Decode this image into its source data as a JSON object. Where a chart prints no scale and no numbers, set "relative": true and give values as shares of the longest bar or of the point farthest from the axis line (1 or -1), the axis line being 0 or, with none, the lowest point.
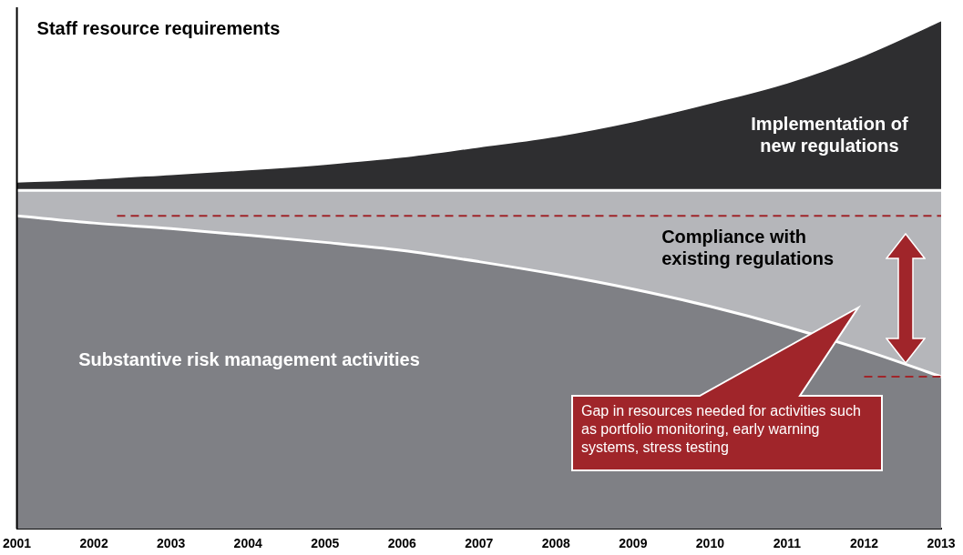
{
  "chart_data": {
    "type": "area",
    "title": "Staff resource requirements",
    "relative": true,
    "stacked": true,
    "categories": [
      "2001",
      "2002",
      "2003",
      "2004",
      "2005",
      "2006",
      "2007",
      "2008",
      "2009",
      "2010",
      "2011",
      "2012",
      "2013"
    ],
    "series": [
      {
        "name": "Substantive risk management activities",
        "color": "#7f8085",
        "values": [
          0.615,
          0.601,
          0.59,
          0.577,
          0.563,
          0.547,
          0.525,
          0.5,
          0.471,
          0.437,
          0.397,
          0.351,
          0.299
        ]
      },
      {
        "name": "Compliance with existing regulations",
        "color": "#b5b6ba",
        "values": [
          0.05,
          0.064,
          0.075,
          0.088,
          0.102,
          0.118,
          0.14,
          0.165,
          0.194,
          0.228,
          0.268,
          0.314,
          0.366
        ]
      },
      {
        "name": "Implementation of new regulations",
        "color": "#2e2e30",
        "values": [
          0.018,
          0.024,
          0.033,
          0.042,
          0.053,
          0.067,
          0.087,
          0.108,
          0.137,
          0.173,
          0.213,
          0.267,
          0.335
        ]
      }
    ],
    "ref_lines": [
      {
        "axis": "y",
        "value": 0.615,
        "color": "#a0252a",
        "line_style": "dashed"
      },
      {
        "axis": "y",
        "value": 0.299,
        "color": "#a0252a",
        "line_style": "dashed"
      }
    ],
    "annotations": [
      "Gap in resources needed for activities such as portfolio monitoring, early warning systems, stress testing"
    ]
  }
}
